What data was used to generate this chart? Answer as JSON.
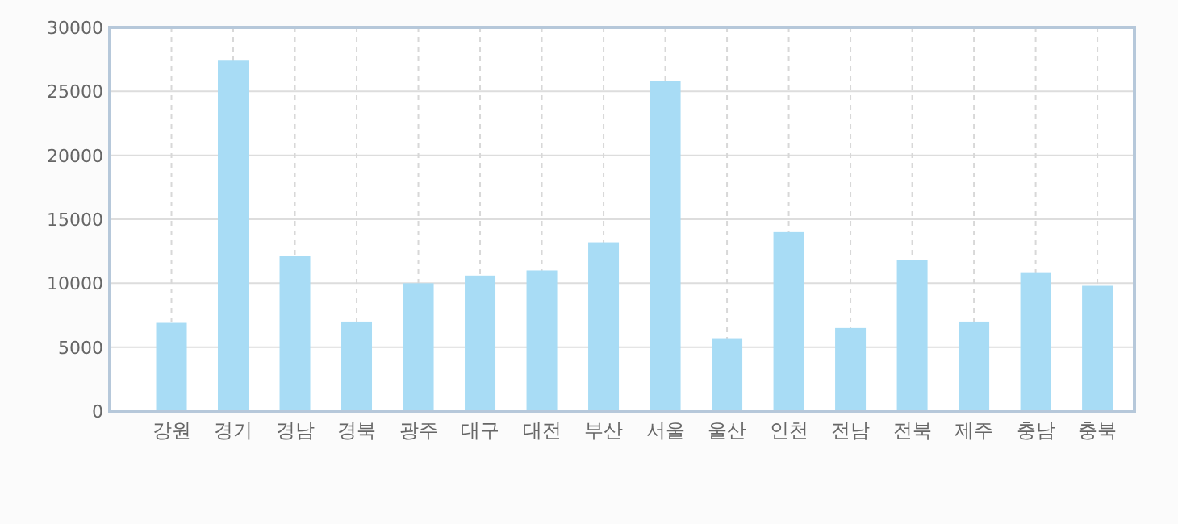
{
  "chart_data": {
    "type": "bar",
    "categories": [
      "강원",
      "경기",
      "경남",
      "경북",
      "광주",
      "대구",
      "대전",
      "부산",
      "서울",
      "울산",
      "인천",
      "전남",
      "전북",
      "제주",
      "충남",
      "충북"
    ],
    "series": [
      {
        "color": "#a8dcf5",
        "values": [
          6900,
          27400,
          12100,
          7000,
          10000,
          10600,
          11000,
          13200,
          25800,
          5700,
          14000,
          6500,
          11800,
          7000,
          10800,
          9800
        ]
      }
    ],
    "ylim": [
      0,
      30000
    ],
    "yticks": [
      0,
      5000,
      10000,
      15000,
      20000,
      25000,
      30000
    ],
    "grid": true
  }
}
